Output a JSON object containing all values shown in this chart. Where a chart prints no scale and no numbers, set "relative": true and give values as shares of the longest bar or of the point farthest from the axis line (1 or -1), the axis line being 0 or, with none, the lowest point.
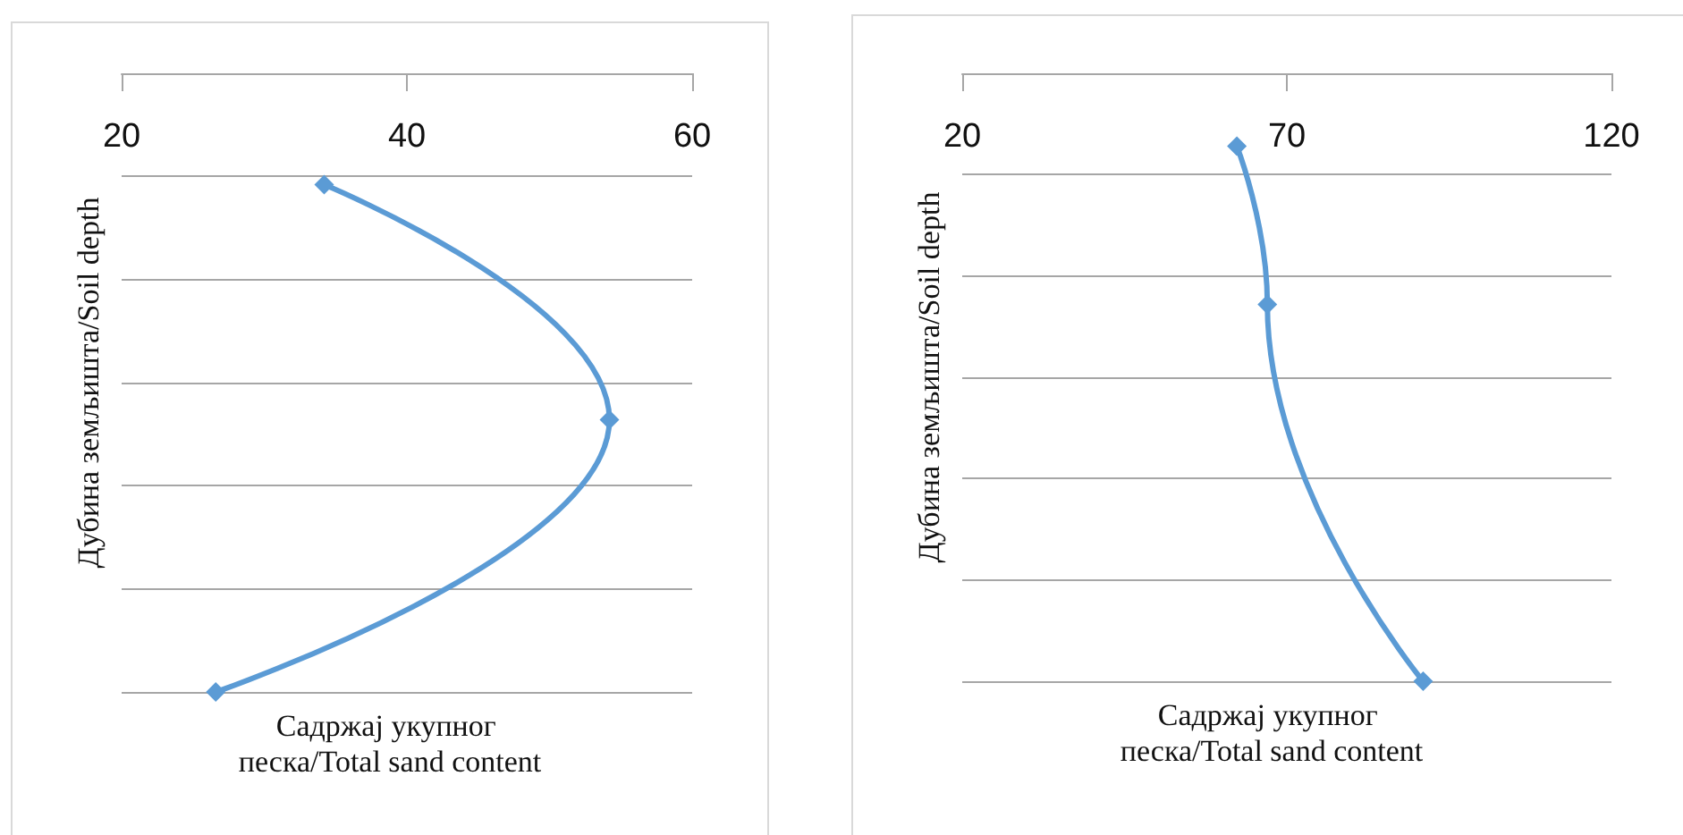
{
  "chart_data": [
    {
      "type": "line",
      "xlabel": "Садржај укупног песка/Total sand content",
      "ylabel": "Дубина земљишта/Soil depth",
      "relative": true,
      "xlim": [
        20,
        60
      ],
      "xticks": [
        20,
        40,
        60
      ],
      "x": [
        34.2,
        54.2,
        26.6
      ],
      "values": [
        -0.18,
        -0.56,
        -1
      ],
      "color": "#5b9bd5",
      "marker": "diamond",
      "grid": "y",
      "tick_labels": "x"
    },
    {
      "type": "line",
      "xlabel": "Садржај укупног песка/Total sand content",
      "ylabel": "Дубина земљишта/Soil depth",
      "relative": true,
      "xlim": [
        20,
        120
      ],
      "xticks": [
        20,
        70,
        120
      ],
      "x": [
        62.3,
        67.0,
        91.0
      ],
      "values": [
        -0.12,
        -0.38,
        -1
      ],
      "color": "#5b9bd5",
      "marker": "diamond",
      "grid": "y",
      "tick_labels": "x"
    }
  ]
}
